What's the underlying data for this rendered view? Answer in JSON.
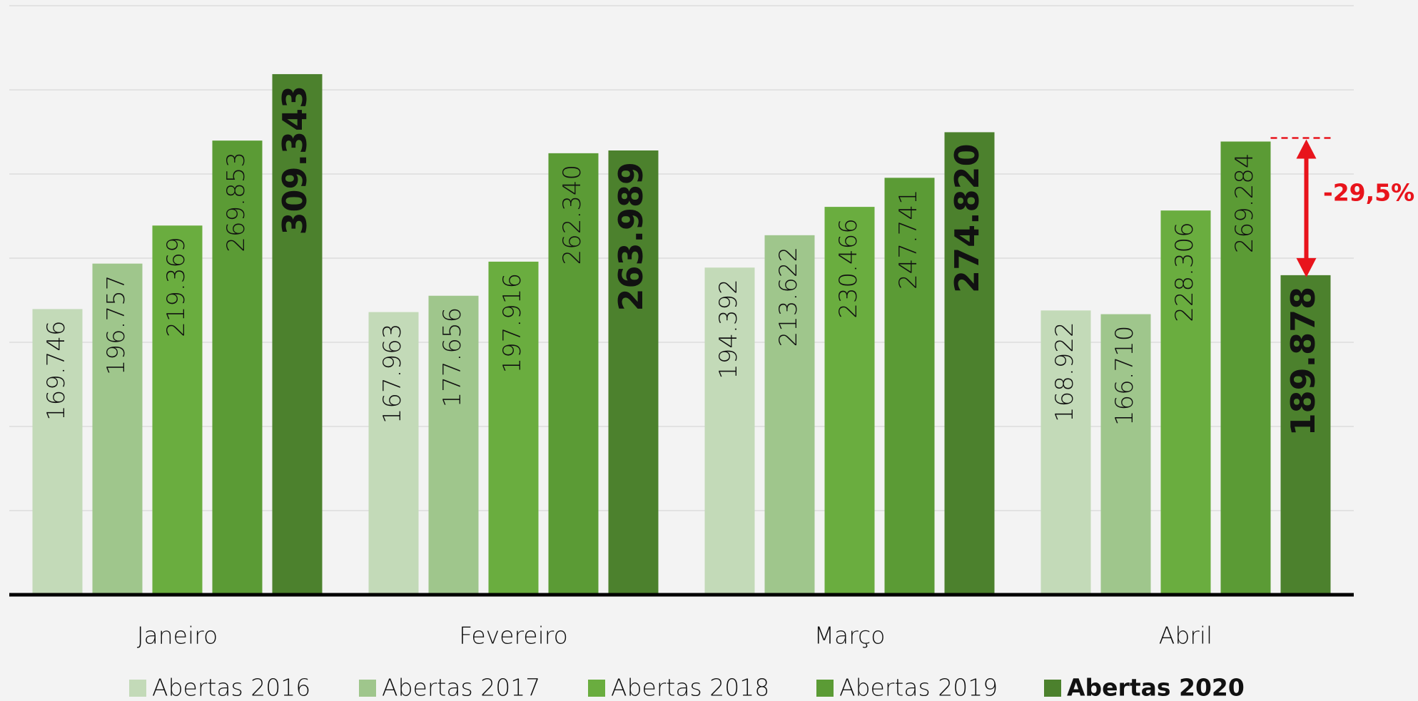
{
  "chart_data": {
    "type": "bar",
    "categories": [
      "Janeiro",
      "Fevereiro",
      "Março",
      "Abril"
    ],
    "series": [
      {
        "name": "Abertas 2016",
        "color": "#c3dab8",
        "values": [
          169746,
          167963,
          194392,
          168922
        ],
        "value_labels": [
          "169.746",
          "167.963",
          "194.392",
          "168.922"
        ]
      },
      {
        "name": "Abertas 2017",
        "color": "#9fc68c",
        "values": [
          196757,
          177656,
          213622,
          166710
        ],
        "value_labels": [
          "196.757",
          "177.656",
          "213.622",
          "166.710"
        ]
      },
      {
        "name": "Abertas 2018",
        "color": "#6aad3f",
        "values": [
          219369,
          197916,
          230466,
          228306
        ],
        "value_labels": [
          "219.369",
          "197.916",
          "230.466",
          "228.306"
        ]
      },
      {
        "name": "Abertas 2019",
        "color": "#5b9b35",
        "values": [
          269853,
          262340,
          247741,
          269284
        ],
        "value_labels": [
          "269.853",
          "262.340",
          "247.741",
          "269.284"
        ]
      },
      {
        "name": "Abertas 2020",
        "color": "#4c812d",
        "values": [
          309343,
          263989,
          274820,
          189878
        ],
        "value_labels": [
          "309.343",
          "263.989",
          "274.820",
          "189.878"
        ]
      }
    ],
    "annotations": [
      "-29,5%"
    ],
    "ylim": [
      0,
      350000
    ],
    "yticks": [
      0,
      50000,
      100000,
      150000,
      200000,
      250000,
      300000,
      350000
    ],
    "grid": true
  }
}
